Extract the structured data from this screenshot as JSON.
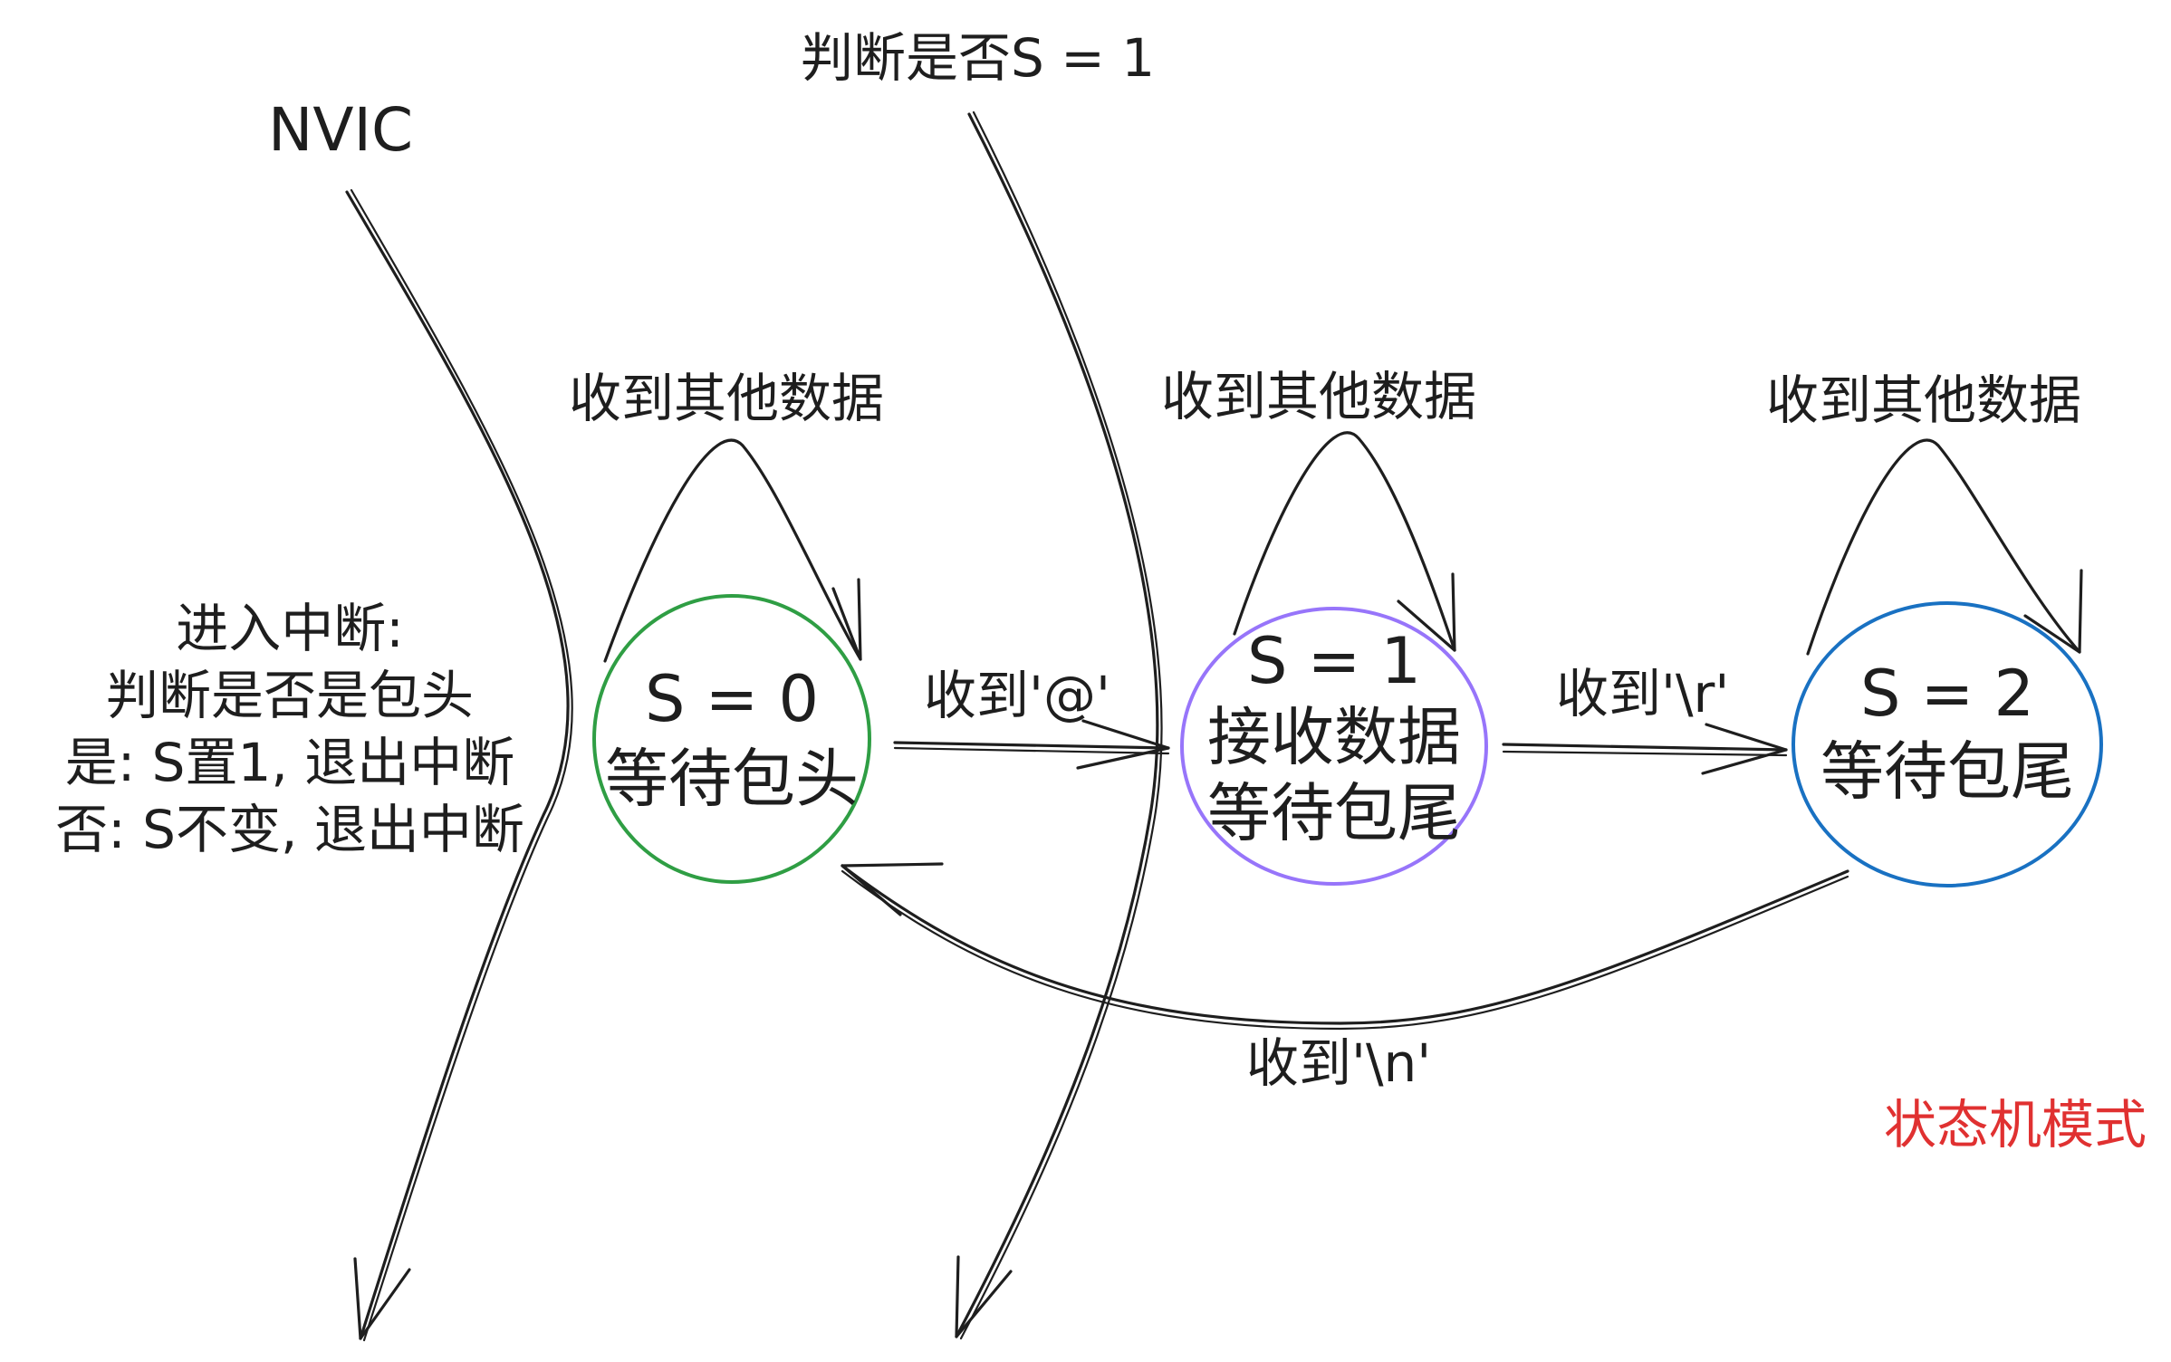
{
  "diagram": {
    "nvic_label": "NVIC",
    "check_label": "判断是否S = 1",
    "interrupt_note": [
      "进入中断:",
      "判断是否是包头",
      "是: S置1, 退出中断",
      "否: S不变, 退出中断"
    ],
    "states": [
      {
        "line1": "S = 0",
        "line2": "等待包头",
        "color": "#2f9e44"
      },
      {
        "line1": "S = 1",
        "line2": "接收数据",
        "line3": "等待包尾",
        "color": "#9775fa"
      },
      {
        "line1": "S = 2",
        "line2": "等待包尾",
        "color": "#1971c2"
      }
    ],
    "self_loop_labels": [
      "收到其他数据",
      "收到其他数据",
      "收到其他数据"
    ],
    "transitions": {
      "s0_to_s1": "收到'@'",
      "s1_to_s2": "收到'\\r'",
      "s2_to_s0": "收到'\\n'"
    },
    "title_note": "状态机模式",
    "title_color": "#e03131"
  }
}
